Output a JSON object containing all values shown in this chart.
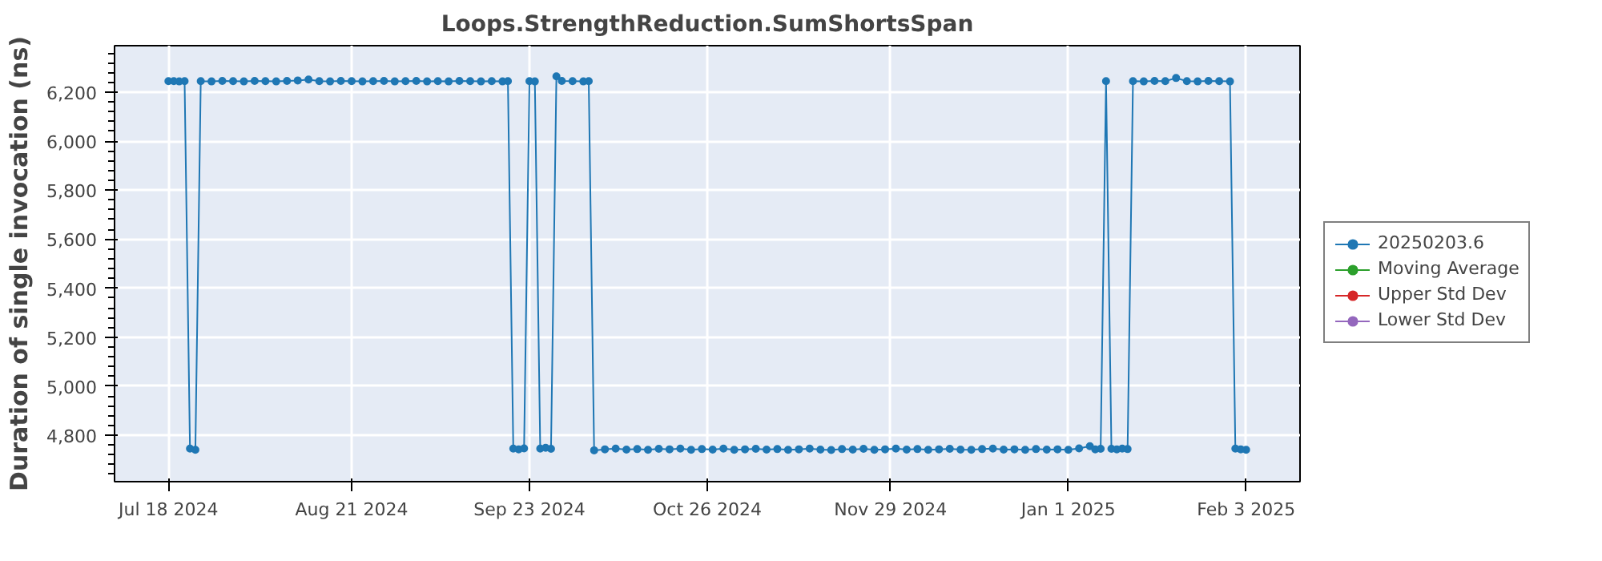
{
  "chart_data": {
    "type": "line",
    "title": "Loops.StrengthReduction.SumShortsSpan",
    "ylabel": "Duration of single invocation (ns)",
    "x": [
      "2024-07-18",
      "2024-07-19",
      "2024-07-20",
      "2024-07-21",
      "2024-07-22",
      "2024-07-23",
      "2024-07-24",
      "2024-07-26",
      "2024-07-28",
      "2024-07-30",
      "2024-08-01",
      "2024-08-03",
      "2024-08-05",
      "2024-08-07",
      "2024-08-09",
      "2024-08-11",
      "2024-08-13",
      "2024-08-15",
      "2024-08-17",
      "2024-08-19",
      "2024-08-21",
      "2024-08-23",
      "2024-08-25",
      "2024-08-27",
      "2024-08-29",
      "2024-08-31",
      "2024-09-02",
      "2024-09-04",
      "2024-09-06",
      "2024-09-08",
      "2024-09-10",
      "2024-09-12",
      "2024-09-14",
      "2024-09-16",
      "2024-09-18",
      "2024-09-19",
      "2024-09-20",
      "2024-09-21",
      "2024-09-22",
      "2024-09-23",
      "2024-09-24",
      "2024-09-25",
      "2024-09-26",
      "2024-09-27",
      "2024-09-28",
      "2024-09-29",
      "2024-10-01",
      "2024-10-03",
      "2024-10-04",
      "2024-10-05",
      "2024-10-07",
      "2024-10-09",
      "2024-10-11",
      "2024-10-13",
      "2024-10-15",
      "2024-10-17",
      "2024-10-19",
      "2024-10-21",
      "2024-10-23",
      "2024-10-25",
      "2024-10-27",
      "2024-10-29",
      "2024-10-31",
      "2024-11-02",
      "2024-11-04",
      "2024-11-06",
      "2024-11-08",
      "2024-11-10",
      "2024-11-12",
      "2024-11-14",
      "2024-11-16",
      "2024-11-18",
      "2024-11-20",
      "2024-11-22",
      "2024-11-24",
      "2024-11-26",
      "2024-11-28",
      "2024-11-30",
      "2024-12-02",
      "2024-12-04",
      "2024-12-06",
      "2024-12-08",
      "2024-12-10",
      "2024-12-12",
      "2024-12-14",
      "2024-12-16",
      "2024-12-18",
      "2024-12-20",
      "2024-12-22",
      "2024-12-24",
      "2024-12-26",
      "2024-12-28",
      "2024-12-30",
      "2025-01-01",
      "2025-01-03",
      "2025-01-05",
      "2025-01-06",
      "2025-01-07",
      "2025-01-08",
      "2025-01-09",
      "2025-01-10",
      "2025-01-11",
      "2025-01-12",
      "2025-01-13",
      "2025-01-15",
      "2025-01-17",
      "2025-01-19",
      "2025-01-21",
      "2025-01-23",
      "2025-01-25",
      "2025-01-27",
      "2025-01-29",
      "2025-01-31",
      "2025-02-01",
      "2025-02-02",
      "2025-02-03"
    ],
    "series": [
      {
        "name": "20250203.6",
        "color": "#1f77b4",
        "values": [
          6245,
          6245,
          6244,
          6245,
          4745,
          4740,
          6245,
          6244,
          6246,
          6245,
          6244,
          6246,
          6245,
          6244,
          6246,
          6248,
          6252,
          6245,
          6244,
          6246,
          6245,
          6244,
          6245,
          6246,
          6244,
          6245,
          6246,
          6244,
          6245,
          6244,
          6246,
          6245,
          6244,
          6245,
          6244,
          6245,
          4745,
          4742,
          4746,
          6245,
          6244,
          4745,
          4748,
          4744,
          6265,
          6246,
          6245,
          6244,
          6245,
          4738,
          4742,
          4745,
          4741,
          4743,
          4740,
          4744,
          4742,
          4745,
          4740,
          4743,
          4741,
          4745,
          4740,
          4742,
          4744,
          4741,
          4743,
          4740,
          4742,
          4745,
          4741,
          4739,
          4743,
          4741,
          4744,
          4740,
          4742,
          4745,
          4741,
          4743,
          4740,
          4742,
          4744,
          4741,
          4740,
          4743,
          4745,
          4741,
          4742,
          4740,
          4743,
          4741,
          4742,
          4740,
          4746,
          4755,
          4742,
          4744,
          6245,
          4744,
          4742,
          4745,
          4743,
          6245,
          6244,
          6246,
          6245,
          6258,
          6245,
          6244,
          6246,
          6245,
          6244,
          4745,
          4742,
          4740
        ]
      },
      {
        "name": "Moving Average",
        "color": "#2ca02c",
        "values": [
          null,
          null,
          null,
          null,
          null,
          null,
          null,
          null,
          null,
          null,
          null,
          null,
          null,
          null,
          null,
          null,
          null,
          null,
          null,
          null,
          null,
          null,
          null,
          null,
          null,
          null,
          null,
          null,
          null,
          null,
          null,
          null,
          null,
          null,
          null,
          null,
          null,
          null,
          null,
          null,
          null,
          null,
          null,
          null,
          null,
          null,
          null,
          null,
          null,
          null,
          null,
          null,
          null,
          null,
          null,
          null,
          null,
          null,
          null,
          null,
          null,
          null,
          null,
          null,
          null,
          null,
          null,
          null,
          null,
          null,
          null,
          null,
          null,
          null,
          null,
          null,
          null,
          null,
          null,
          null,
          null,
          null,
          null,
          null,
          null,
          null,
          null,
          null,
          null,
          null,
          null,
          null,
          null,
          null,
          null,
          null,
          null,
          null,
          null,
          null,
          null,
          null,
          null,
          null,
          null,
          null,
          null,
          null,
          null,
          null,
          null,
          null,
          null,
          null,
          null,
          null
        ]
      },
      {
        "name": "Upper Std Dev",
        "color": "#d62728",
        "values": [
          null,
          null,
          null,
          null,
          null,
          null,
          null,
          null,
          null,
          null,
          null,
          null,
          null,
          null,
          null,
          null,
          null,
          null,
          null,
          null,
          null,
          null,
          null,
          null,
          null,
          null,
          null,
          null,
          null,
          null,
          null,
          null,
          null,
          null,
          null,
          null,
          null,
          null,
          null,
          null,
          null,
          null,
          null,
          null,
          null,
          null,
          null,
          null,
          null,
          null,
          null,
          null,
          null,
          null,
          null,
          null,
          null,
          null,
          null,
          null,
          null,
          null,
          null,
          null,
          null,
          null,
          null,
          null,
          null,
          null,
          null,
          null,
          null,
          null,
          null,
          null,
          null,
          null,
          null,
          null,
          null,
          null,
          null,
          null,
          null,
          null,
          null,
          null,
          null,
          null,
          null,
          null,
          null,
          null,
          null,
          null,
          null,
          null,
          null,
          null,
          null,
          null,
          null,
          null,
          null,
          null,
          null,
          null,
          null,
          null,
          null,
          null,
          null,
          null,
          null,
          null
        ]
      },
      {
        "name": "Lower Std Dev",
        "color": "#9467bd",
        "values": [
          null,
          null,
          null,
          null,
          null,
          null,
          null,
          null,
          null,
          null,
          null,
          null,
          null,
          null,
          null,
          null,
          null,
          null,
          null,
          null,
          null,
          null,
          null,
          null,
          null,
          null,
          null,
          null,
          null,
          null,
          null,
          null,
          null,
          null,
          null,
          null,
          null,
          null,
          null,
          null,
          null,
          null,
          null,
          null,
          null,
          null,
          null,
          null,
          null,
          null,
          null,
          null,
          null,
          null,
          null,
          null,
          null,
          null,
          null,
          null,
          null,
          null,
          null,
          null,
          null,
          null,
          null,
          null,
          null,
          null,
          null,
          null,
          null,
          null,
          null,
          null,
          null,
          null,
          null,
          null,
          null,
          null,
          null,
          null,
          null,
          null,
          null,
          null,
          null,
          null,
          null,
          null,
          null,
          null,
          null,
          null,
          null,
          null,
          null,
          null,
          null,
          null,
          null,
          null,
          null,
          null,
          null,
          null,
          null,
          null,
          null,
          null,
          null,
          null,
          null,
          null
        ]
      }
    ],
    "xlim": [
      "2024-07-08",
      "2025-02-13"
    ],
    "xticks": [
      {
        "value": "2024-07-18",
        "label": "Jul 18 2024"
      },
      {
        "value": "2024-08-21",
        "label": "Aug 21 2024"
      },
      {
        "value": "2024-09-23",
        "label": "Sep 23 2024"
      },
      {
        "value": "2024-10-26",
        "label": "Oct 26 2024"
      },
      {
        "value": "2024-11-29",
        "label": "Nov 29 2024"
      },
      {
        "value": "2025-01-01",
        "label": "Jan 1 2025"
      },
      {
        "value": "2025-02-03",
        "label": "Feb 3 2025"
      }
    ],
    "ylim": [
      4610,
      6390
    ],
    "yticks": [
      {
        "value": 4800,
        "label": "4,800"
      },
      {
        "value": 5000,
        "label": "5,000"
      },
      {
        "value": 5200,
        "label": "5,200"
      },
      {
        "value": 5400,
        "label": "5,400"
      },
      {
        "value": 5600,
        "label": "5,600"
      },
      {
        "value": 5800,
        "label": "5,800"
      },
      {
        "value": 6000,
        "label": "6,000"
      },
      {
        "value": 6200,
        "label": "6,200"
      }
    ],
    "grid": true,
    "legend": "right",
    "marker": "circle",
    "line_style": "solid"
  }
}
